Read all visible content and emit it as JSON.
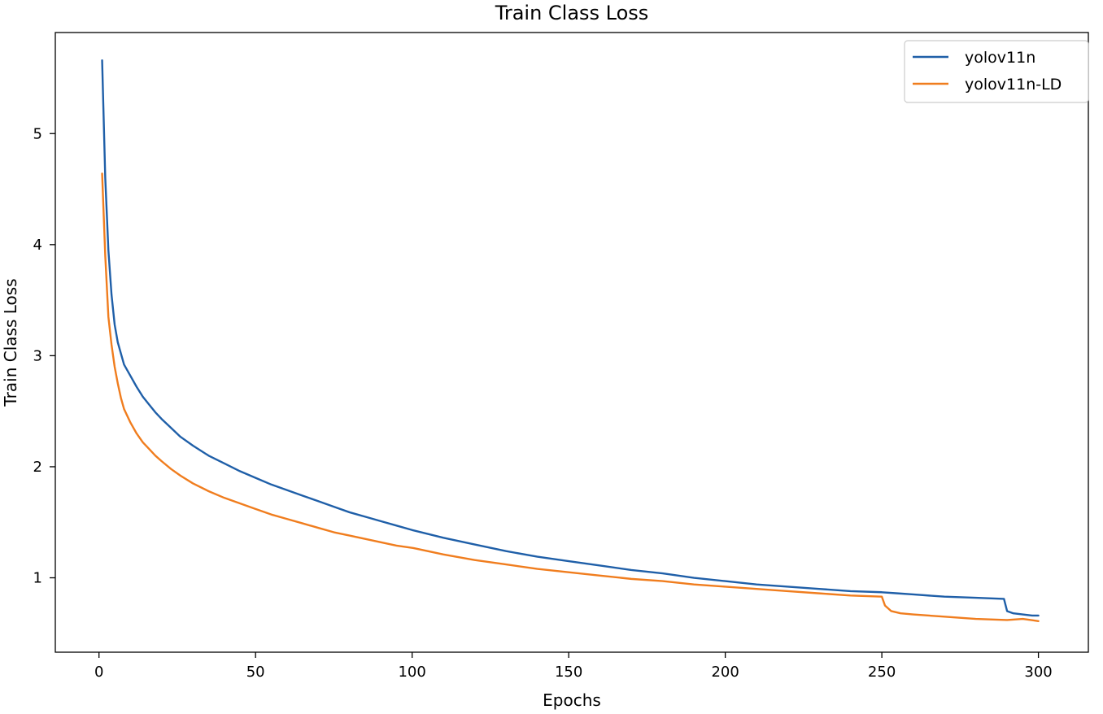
{
  "chart_data": {
    "type": "line",
    "title": "Train Class Loss",
    "xlabel": "Epochs",
    "ylabel": "Train Class Loss",
    "xlim": [
      -13.95,
      315.95
    ],
    "ylim": [
      0.33,
      5.91
    ],
    "xticks": [
      0,
      50,
      100,
      150,
      200,
      250,
      300
    ],
    "yticks": [
      1,
      2,
      3,
      4,
      5
    ],
    "grid": false,
    "legend": "top-right",
    "series": [
      {
        "name": "yolov11n",
        "color": "#1f5fa8",
        "points": [
          [
            1,
            5.66
          ],
          [
            2,
            4.6
          ],
          [
            3,
            3.95
          ],
          [
            4,
            3.55
          ],
          [
            5,
            3.28
          ],
          [
            6,
            3.12
          ],
          [
            7,
            3.02
          ],
          [
            8,
            2.92
          ],
          [
            10,
            2.82
          ],
          [
            12,
            2.72
          ],
          [
            14,
            2.63
          ],
          [
            16,
            2.56
          ],
          [
            18,
            2.49
          ],
          [
            20,
            2.43
          ],
          [
            23,
            2.35
          ],
          [
            26,
            2.27
          ],
          [
            30,
            2.19
          ],
          [
            35,
            2.1
          ],
          [
            40,
            2.03
          ],
          [
            45,
            1.96
          ],
          [
            50,
            1.9
          ],
          [
            55,
            1.84
          ],
          [
            60,
            1.79
          ],
          [
            65,
            1.74
          ],
          [
            70,
            1.69
          ],
          [
            75,
            1.64
          ],
          [
            80,
            1.59
          ],
          [
            85,
            1.55
          ],
          [
            90,
            1.51
          ],
          [
            95,
            1.47
          ],
          [
            100,
            1.43
          ],
          [
            110,
            1.36
          ],
          [
            120,
            1.3
          ],
          [
            130,
            1.24
          ],
          [
            140,
            1.19
          ],
          [
            150,
            1.15
          ],
          [
            160,
            1.11
          ],
          [
            170,
            1.07
          ],
          [
            180,
            1.04
          ],
          [
            190,
            1.0
          ],
          [
            200,
            0.97
          ],
          [
            210,
            0.94
          ],
          [
            220,
            0.92
          ],
          [
            230,
            0.9
          ],
          [
            240,
            0.88
          ],
          [
            250,
            0.87
          ],
          [
            255,
            0.86
          ],
          [
            260,
            0.85
          ],
          [
            270,
            0.83
          ],
          [
            280,
            0.82
          ],
          [
            289,
            0.81
          ],
          [
            290,
            0.7
          ],
          [
            292,
            0.68
          ],
          [
            295,
            0.67
          ],
          [
            298,
            0.66
          ],
          [
            300,
            0.66
          ]
        ]
      },
      {
        "name": "yolov11n-LD",
        "color": "#f07d1e",
        "points": [
          [
            1,
            4.64
          ],
          [
            2,
            3.9
          ],
          [
            3,
            3.35
          ],
          [
            4,
            3.1
          ],
          [
            5,
            2.9
          ],
          [
            6,
            2.75
          ],
          [
            7,
            2.62
          ],
          [
            8,
            2.52
          ],
          [
            10,
            2.4
          ],
          [
            12,
            2.3
          ],
          [
            14,
            2.22
          ],
          [
            16,
            2.16
          ],
          [
            18,
            2.1
          ],
          [
            20,
            2.05
          ],
          [
            23,
            1.98
          ],
          [
            26,
            1.92
          ],
          [
            30,
            1.85
          ],
          [
            35,
            1.78
          ],
          [
            40,
            1.72
          ],
          [
            45,
            1.67
          ],
          [
            50,
            1.62
          ],
          [
            55,
            1.57
          ],
          [
            60,
            1.53
          ],
          [
            65,
            1.49
          ],
          [
            70,
            1.45
          ],
          [
            75,
            1.41
          ],
          [
            80,
            1.38
          ],
          [
            85,
            1.35
          ],
          [
            90,
            1.32
          ],
          [
            95,
            1.29
          ],
          [
            100,
            1.27
          ],
          [
            110,
            1.21
          ],
          [
            120,
            1.16
          ],
          [
            130,
            1.12
          ],
          [
            140,
            1.08
          ],
          [
            150,
            1.05
          ],
          [
            160,
            1.02
          ],
          [
            170,
            0.99
          ],
          [
            180,
            0.97
          ],
          [
            190,
            0.94
          ],
          [
            200,
            0.92
          ],
          [
            210,
            0.9
          ],
          [
            220,
            0.88
          ],
          [
            230,
            0.86
          ],
          [
            240,
            0.84
          ],
          [
            250,
            0.83
          ],
          [
            251,
            0.75
          ],
          [
            253,
            0.7
          ],
          [
            256,
            0.68
          ],
          [
            260,
            0.67
          ],
          [
            270,
            0.65
          ],
          [
            280,
            0.63
          ],
          [
            290,
            0.62
          ],
          [
            295,
            0.63
          ],
          [
            300,
            0.61
          ]
        ]
      }
    ]
  }
}
